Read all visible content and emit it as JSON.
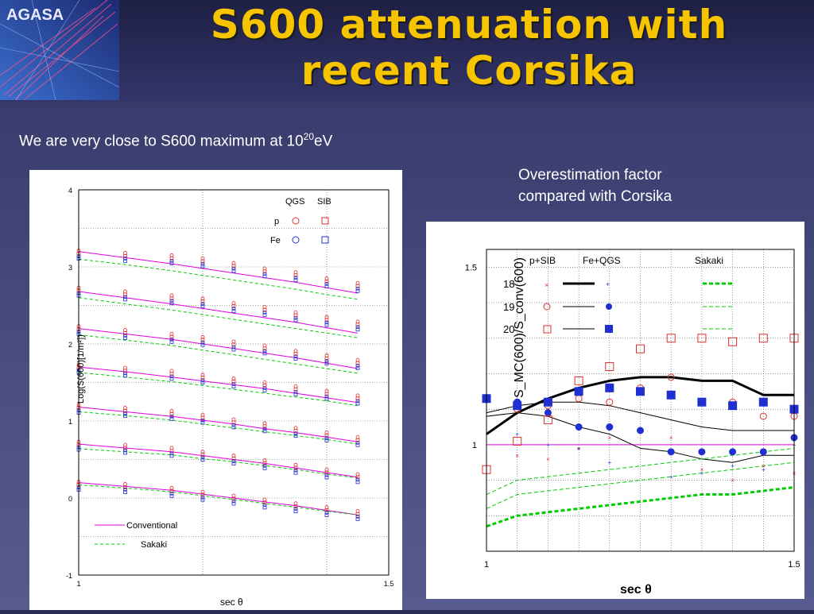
{
  "header": {
    "logo_text": "AGASA",
    "title_line1": "S600 attenuation with",
    "title_line2": "recent Corsika"
  },
  "subtitle": {
    "text": "We are very close to S600 maximum at 10",
    "sup": "20",
    "unit": "eV"
  },
  "note": {
    "line1": "Overestimation factor",
    "line2": "compared with Corsika"
  },
  "colors": {
    "title": "#f7c400",
    "conventional": "#e000e0",
    "sakaki": "#00cc00",
    "proton": "#e03030",
    "iron": "#2030d0"
  },
  "chart_data": [
    {
      "type": "line",
      "xlabel": "sec θ",
      "ylabel": "Log(S(600)[1/m²])",
      "xlim": [
        1,
        1.5
      ],
      "ylim": [
        -1,
        4
      ],
      "x_ticks": [
        "1",
        "1.5"
      ],
      "y_ticks": [
        "-1",
        "0",
        "1",
        "2",
        "3",
        "4"
      ],
      "legend_markers_header": [
        "QGS",
        "SIB"
      ],
      "legend_markers_rows": [
        "p",
        "Fe"
      ],
      "legend_lines": [
        "Conventional",
        "Sakaki"
      ],
      "x": [
        1.0,
        1.075,
        1.15,
        1.2,
        1.25,
        1.3,
        1.35,
        1.4,
        1.45
      ],
      "groups": [
        {
          "conventional": [
            3.2,
            3.12,
            3.04,
            2.98,
            2.92,
            2.86,
            2.8,
            2.73,
            2.66
          ],
          "sakaki": [
            3.1,
            3.03,
            2.95,
            2.89,
            2.83,
            2.77,
            2.71,
            2.64,
            2.58
          ],
          "points": [
            3.18,
            3.15,
            3.12,
            3.08,
            3.02,
            2.95,
            2.9,
            2.82,
            2.76
          ]
        },
        {
          "conventional": [
            2.68,
            2.6,
            2.52,
            2.46,
            2.4,
            2.34,
            2.28,
            2.21,
            2.14
          ],
          "sakaki": [
            2.6,
            2.52,
            2.44,
            2.38,
            2.32,
            2.26,
            2.2,
            2.14,
            2.08
          ],
          "points": [
            2.7,
            2.65,
            2.6,
            2.56,
            2.5,
            2.45,
            2.38,
            2.32,
            2.26
          ]
        },
        {
          "conventional": [
            2.2,
            2.13,
            2.06,
            2.0,
            1.94,
            1.88,
            1.82,
            1.75,
            1.68
          ],
          "sakaki": [
            2.12,
            2.05,
            1.98,
            1.92,
            1.86,
            1.8,
            1.74,
            1.68,
            1.62
          ],
          "points": [
            2.2,
            2.15,
            2.1,
            2.06,
            2.0,
            1.95,
            1.88,
            1.82,
            1.76
          ]
        },
        {
          "conventional": [
            1.7,
            1.64,
            1.57,
            1.52,
            1.47,
            1.42,
            1.36,
            1.3,
            1.24
          ],
          "sakaki": [
            1.63,
            1.57,
            1.51,
            1.46,
            1.41,
            1.36,
            1.31,
            1.26,
            1.2
          ],
          "points": [
            1.7,
            1.66,
            1.62,
            1.57,
            1.52,
            1.47,
            1.42,
            1.36,
            1.3
          ]
        },
        {
          "conventional": [
            1.18,
            1.12,
            1.06,
            1.01,
            0.96,
            0.9,
            0.85,
            0.79,
            0.73
          ],
          "sakaki": [
            1.12,
            1.07,
            1.01,
            0.96,
            0.91,
            0.86,
            0.81,
            0.76,
            0.7
          ],
          "points": [
            1.18,
            1.14,
            1.1,
            1.05,
            0.99,
            0.94,
            0.88,
            0.82,
            0.76
          ]
        },
        {
          "conventional": [
            0.7,
            0.65,
            0.6,
            0.55,
            0.5,
            0.45,
            0.39,
            0.33,
            0.27
          ],
          "sakaki": [
            0.64,
            0.6,
            0.56,
            0.51,
            0.47,
            0.42,
            0.37,
            0.31,
            0.26
          ],
          "points": [
            0.7,
            0.66,
            0.62,
            0.57,
            0.52,
            0.46,
            0.4,
            0.34,
            0.28
          ]
        },
        {
          "conventional": [
            0.2,
            0.15,
            0.1,
            0.05,
            0.0,
            -0.05,
            -0.1,
            -0.16,
            -0.22
          ],
          "sakaki": [
            0.17,
            0.13,
            0.08,
            0.03,
            -0.02,
            -0.07,
            -0.12,
            -0.17,
            -0.22
          ],
          "points": [
            0.18,
            0.15,
            0.1,
            0.05,
            0.0,
            -0.05,
            -0.1,
            -0.15,
            -0.2
          ]
        }
      ]
    },
    {
      "type": "scatter",
      "xlabel": "sec θ",
      "ylabel": "S_MC(600)/S_conv(600)",
      "xlim": [
        1,
        1.5
      ],
      "ylim": [
        0.7,
        1.55
      ],
      "x_ticks": [
        "1",
        "1.5"
      ],
      "y_ticks": [
        "1",
        "1.5"
      ],
      "legend_header": [
        "p+SIB",
        "Fe+QGS",
        "Sakaki"
      ],
      "legend_rows": [
        "18",
        "19",
        "20"
      ],
      "series": [
        {
          "name": "18",
          "kind": "p+SIB",
          "x": [
            1.05,
            1.1,
            1.15,
            1.2,
            1.3,
            1.35,
            1.4,
            1.45,
            1.5
          ],
          "y": [
            0.97,
            0.96,
            0.99,
            1.02,
            1.02,
            0.93,
            0.9,
            0.94,
            0.92
          ]
        },
        {
          "name": "18",
          "kind": "Fe+QGS",
          "x": [
            1.05,
            1.1,
            1.15,
            1.2,
            1.3,
            1.35,
            1.4,
            1.45,
            1.5
          ],
          "y": [
            1.03,
            1.0,
            0.99,
            0.95,
            0.91,
            0.92,
            0.94,
            0.93,
            1.0
          ]
        },
        {
          "name": "19",
          "kind": "p+SIB",
          "x": [
            1.05,
            1.1,
            1.15,
            1.2,
            1.25,
            1.3,
            1.35,
            1.4,
            1.45,
            1.5
          ],
          "y": [
            1.1,
            1.11,
            1.13,
            1.12,
            1.16,
            1.19,
            1.12,
            1.12,
            1.08,
            1.08
          ]
        },
        {
          "name": "19",
          "kind": "Fe+QGS",
          "x": [
            1.05,
            1.1,
            1.15,
            1.2,
            1.25,
            1.3,
            1.35,
            1.4,
            1.45,
            1.5
          ],
          "y": [
            1.12,
            1.09,
            1.05,
            1.05,
            1.04,
            0.98,
            0.98,
            0.98,
            0.98,
            1.02
          ]
        },
        {
          "name": "20",
          "kind": "p+SIB",
          "x": [
            1.0,
            1.05,
            1.1,
            1.15,
            1.2,
            1.25,
            1.3,
            1.35,
            1.4,
            1.45,
            1.5
          ],
          "y": [
            0.93,
            1.01,
            1.07,
            1.18,
            1.22,
            1.27,
            1.3,
            1.3,
            1.29,
            1.3,
            1.3
          ]
        },
        {
          "name": "20",
          "kind": "Fe+QGS",
          "x": [
            1.0,
            1.05,
            1.1,
            1.15,
            1.2,
            1.25,
            1.3,
            1.35,
            1.4,
            1.45,
            1.5
          ],
          "y": [
            1.13,
            1.11,
            1.12,
            1.15,
            1.16,
            1.15,
            1.14,
            1.12,
            1.11,
            1.12,
            1.1
          ]
        }
      ],
      "lines": [
        {
          "name": "18",
          "kind": "p+SIB",
          "x": [
            1.0,
            1.05,
            1.1,
            1.15,
            1.2,
            1.25,
            1.3,
            1.35,
            1.4,
            1.45,
            1.5
          ],
          "y": [
            1.03,
            1.09,
            1.13,
            1.16,
            1.18,
            1.19,
            1.19,
            1.18,
            1.18,
            1.14,
            1.14
          ]
        },
        {
          "name": "19",
          "kind": "p+SIB",
          "x": [
            1.0,
            1.05,
            1.1,
            1.15,
            1.2,
            1.25,
            1.3,
            1.35,
            1.4,
            1.45,
            1.5
          ],
          "y": [
            1.09,
            1.11,
            1.12,
            1.12,
            1.11,
            1.09,
            1.07,
            1.05,
            1.04,
            1.04,
            1.04
          ]
        },
        {
          "name": "20",
          "kind": "p+SIB",
          "x": [
            1.0,
            1.05,
            1.1,
            1.15,
            1.2,
            1.25,
            1.3,
            1.35,
            1.4,
            1.45,
            1.5
          ],
          "y": [
            1.08,
            1.09,
            1.08,
            1.05,
            1.03,
            0.99,
            0.98,
            0.96,
            0.95,
            0.97,
            0.97
          ]
        },
        {
          "name": "Sakaki 18",
          "kind": "Sakaki",
          "x": [
            1.0,
            1.05,
            1.1,
            1.15,
            1.2,
            1.25,
            1.3,
            1.35,
            1.4,
            1.45,
            1.5
          ],
          "y": [
            0.77,
            0.8,
            0.81,
            0.82,
            0.83,
            0.84,
            0.85,
            0.86,
            0.86,
            0.87,
            0.88
          ]
        },
        {
          "name": "Sakaki 19",
          "kind": "Sakaki",
          "x": [
            1.0,
            1.05,
            1.1,
            1.15,
            1.2,
            1.25,
            1.3,
            1.35,
            1.4,
            1.45,
            1.5
          ],
          "y": [
            0.82,
            0.86,
            0.87,
            0.88,
            0.89,
            0.9,
            0.91,
            0.92,
            0.93,
            0.94,
            0.95
          ]
        },
        {
          "name": "Sakaki 20",
          "kind": "Sakaki",
          "x": [
            1.0,
            1.05,
            1.1,
            1.15,
            1.2,
            1.25,
            1.3,
            1.35,
            1.4,
            1.45,
            1.5
          ],
          "y": [
            0.86,
            0.9,
            0.91,
            0.92,
            0.93,
            0.94,
            0.95,
            0.96,
            0.97,
            0.98,
            0.99
          ]
        }
      ],
      "reference_line": 1.0
    }
  ]
}
